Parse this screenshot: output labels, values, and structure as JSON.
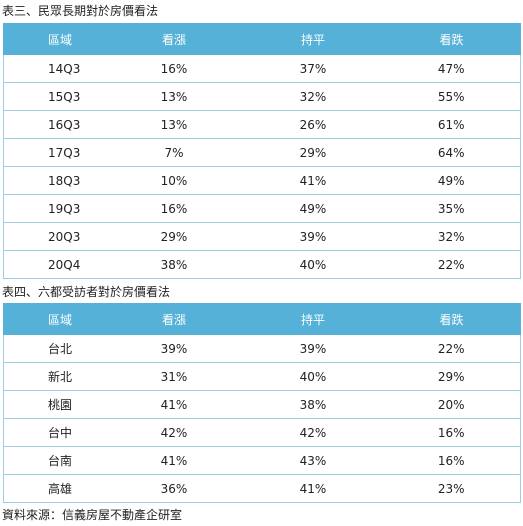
{
  "table1": {
    "caption": "表三、民眾長期對於房價看法",
    "headers": [
      "區域",
      "看漲",
      "持平",
      "看跌"
    ],
    "rows": [
      [
        "14Q3",
        "16%",
        "37%",
        "47%"
      ],
      [
        "15Q3",
        "13%",
        "32%",
        "55%"
      ],
      [
        "16Q3",
        "13%",
        "26%",
        "61%"
      ],
      [
        "17Q3",
        "7%",
        "29%",
        "64%"
      ],
      [
        "18Q3",
        "10%",
        "41%",
        "49%"
      ],
      [
        "19Q3",
        "16%",
        "49%",
        "35%"
      ],
      [
        "20Q3",
        "29%",
        "39%",
        "32%"
      ],
      [
        "20Q4",
        "38%",
        "40%",
        "22%"
      ]
    ]
  },
  "table2": {
    "caption": "表四、六都受訪者對於房價看法",
    "headers": [
      "區域",
      "看漲",
      "持平",
      "看跌"
    ],
    "rows": [
      [
        "台北",
        "39%",
        "39%",
        "22%"
      ],
      [
        "新北",
        "31%",
        "40%",
        "29%"
      ],
      [
        "桃園",
        "41%",
        "38%",
        "20%"
      ],
      [
        "台中",
        "42%",
        "42%",
        "16%"
      ],
      [
        "台南",
        "41%",
        "43%",
        "16%"
      ],
      [
        "高雄",
        "36%",
        "41%",
        "23%"
      ]
    ]
  },
  "source": "資料來源：信義房屋不動產企研室",
  "colors": {
    "header_bg": "#56b1d8",
    "border": "#9ccde3"
  }
}
